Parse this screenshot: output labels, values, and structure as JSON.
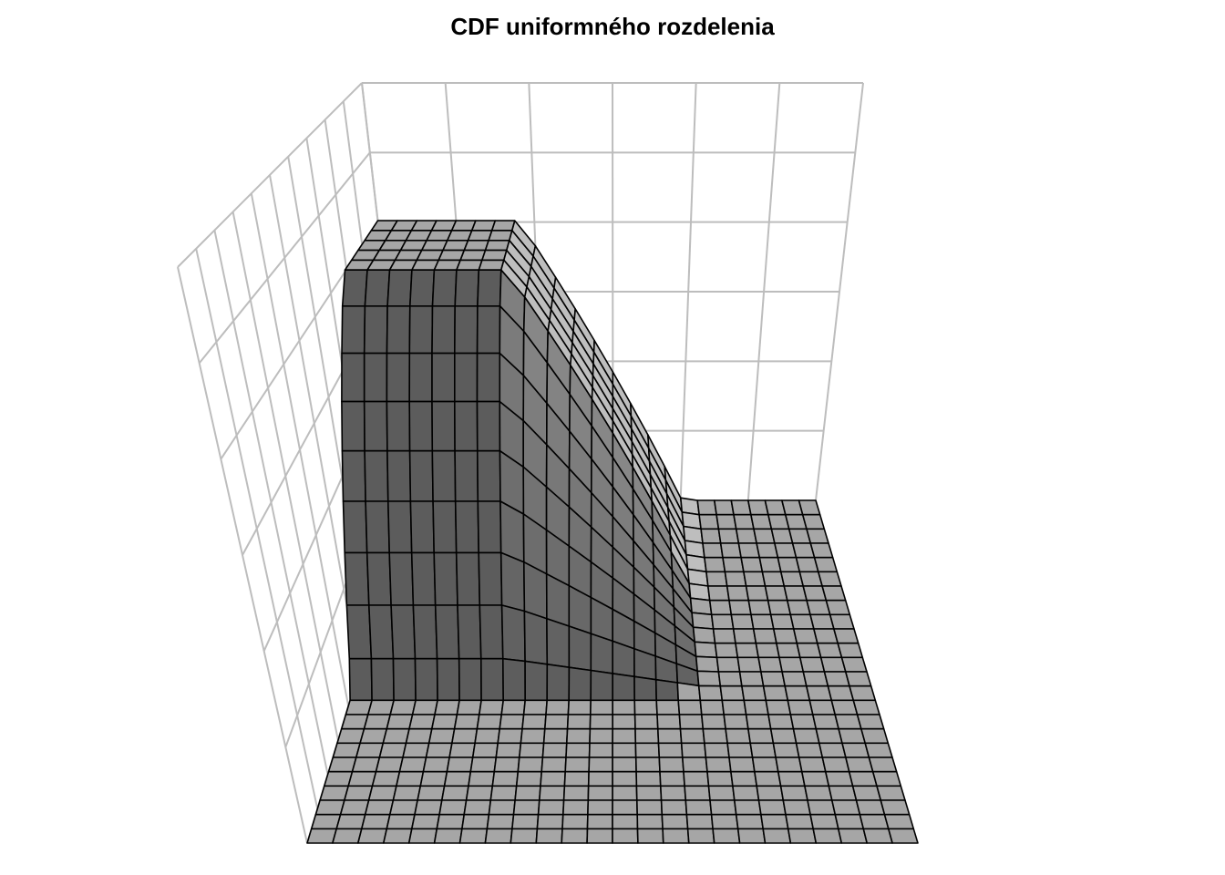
{
  "chart_data": {
    "type": "surface",
    "title": "CDF uniformného rozdelenia"
  }
}
